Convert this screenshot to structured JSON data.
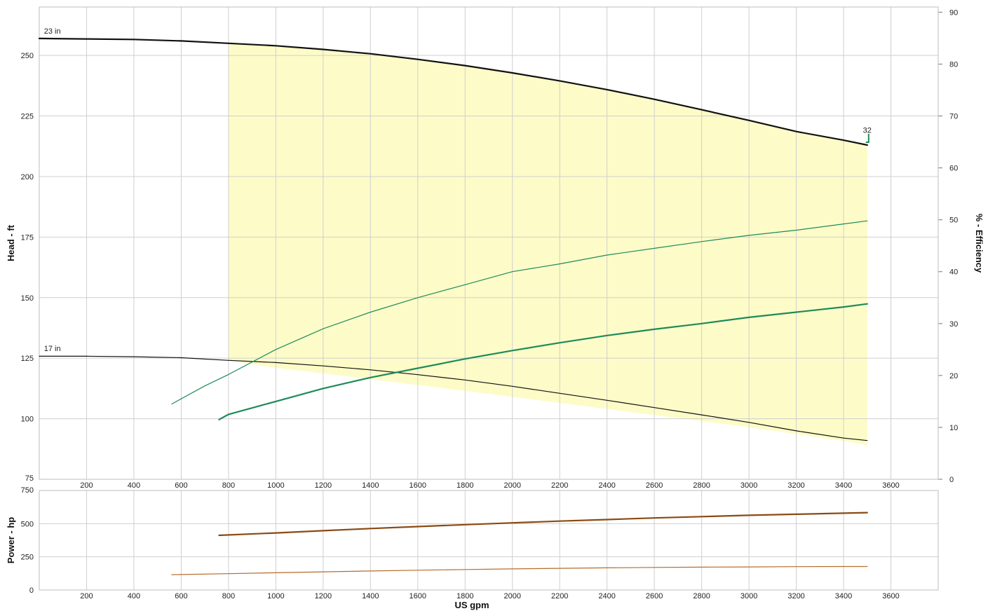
{
  "chart_data": [
    {
      "type": "line",
      "panel": "head-efficiency",
      "xlabel": "",
      "ylabel": "Head - ft",
      "y2label": "% - Efficiency",
      "xlim": [
        0,
        3800
      ],
      "ylim": [
        75,
        270
      ],
      "y2lim": [
        0,
        91
      ],
      "x_ticks": [
        200,
        400,
        600,
        800,
        1000,
        1200,
        1400,
        1600,
        1800,
        2000,
        2200,
        2400,
        2600,
        2800,
        3000,
        3200,
        3400,
        3600
      ],
      "y_ticks": [
        75,
        100,
        125,
        150,
        175,
        200,
        225,
        250
      ],
      "y2_ticks": [
        0,
        10,
        20,
        30,
        40,
        50,
        60,
        70,
        80,
        90
      ],
      "grid": true,
      "operating_region": {
        "color": "#fdfcc8",
        "upper": [
          [
            800,
            255
          ],
          [
            1000,
            254
          ],
          [
            1200,
            252.5
          ],
          [
            1400,
            250.7
          ],
          [
            1600,
            248.4
          ],
          [
            1800,
            245.8
          ],
          [
            2000,
            242.8
          ],
          [
            2200,
            239.5
          ],
          [
            2400,
            235.9
          ],
          [
            2600,
            231.9
          ],
          [
            2800,
            227.6
          ],
          [
            3000,
            223.2
          ],
          [
            3200,
            218.6
          ],
          [
            3400,
            215.0
          ],
          [
            3500,
            213.0
          ]
        ],
        "lower": [
          [
            800,
            124.1
          ],
          [
            1000,
            121.0
          ],
          [
            1400,
            116.3
          ],
          [
            1800,
            111.5
          ],
          [
            2200,
            106.5
          ],
          [
            2600,
            101.5
          ],
          [
            3000,
            96.5
          ],
          [
            3400,
            90.8
          ],
          [
            3500,
            89
          ]
        ]
      },
      "series": [
        {
          "name": "23 in",
          "axis": "left",
          "color": "#111111",
          "width": 2.2,
          "x": [
            0,
            200,
            400,
            600,
            800,
            1000,
            1200,
            1400,
            1600,
            1800,
            2000,
            2200,
            2400,
            2600,
            2800,
            3000,
            3200,
            3400,
            3500
          ],
          "y": [
            257,
            256.8,
            256.6,
            256,
            255,
            254,
            252.5,
            250.7,
            248.4,
            245.8,
            242.8,
            239.5,
            235.9,
            231.9,
            227.6,
            223.2,
            218.6,
            215.0,
            213.0
          ]
        },
        {
          "name": "17 in",
          "axis": "left",
          "color": "#111111",
          "width": 1.2,
          "x": [
            0,
            200,
            400,
            600,
            800,
            1000,
            1200,
            1400,
            1600,
            1800,
            2000,
            2200,
            2400,
            2600,
            2800,
            3000,
            3200,
            3400,
            3500
          ],
          "y": [
            125.8,
            125.8,
            125.6,
            125.2,
            124.1,
            123.2,
            121.8,
            120.2,
            118.2,
            116.0,
            113.4,
            110.5,
            107.6,
            104.6,
            101.6,
            98.5,
            95.0,
            92.0,
            91.0
          ]
        },
        {
          "name": "",
          "axis": "right",
          "color": "#1e8a5a",
          "width": 1.2,
          "x": [
            560,
            700,
            800,
            1000,
            1200,
            1400,
            1600,
            1800,
            2000,
            2200,
            2400,
            2600,
            2800,
            3000,
            3200,
            3400,
            3500
          ],
          "y": [
            14.5,
            18,
            20.2,
            25,
            29,
            32.2,
            35,
            37.5,
            40,
            41.5,
            43.2,
            44.5,
            45.8,
            47,
            48,
            49.2,
            49.8
          ]
        },
        {
          "name": "",
          "axis": "right",
          "color": "#1e8a5a",
          "width": 2.2,
          "x": [
            760,
            800,
            1000,
            1200,
            1400,
            1600,
            1800,
            2000,
            2200,
            2400,
            2600,
            2800,
            3000,
            3200,
            3400,
            3500
          ],
          "y": [
            11.5,
            12.5,
            15,
            17.5,
            19.6,
            21.4,
            23.2,
            24.8,
            26.3,
            27.7,
            28.9,
            30,
            31.2,
            32.2,
            33.2,
            33.8
          ]
        }
      ],
      "annotations": [
        {
          "text": "23 in",
          "x": 20,
          "y": 259
        },
        {
          "text": "17 in",
          "x": 20,
          "y": 128
        },
        {
          "text": "32",
          "x": 3500,
          "y": 218
        }
      ]
    },
    {
      "type": "line",
      "panel": "power",
      "xlabel": "US gpm",
      "ylabel": "Power - hp",
      "xlim": [
        0,
        3800
      ],
      "ylim": [
        0,
        750
      ],
      "x_ticks": [
        200,
        400,
        600,
        800,
        1000,
        1200,
        1400,
        1600,
        1800,
        2000,
        2200,
        2400,
        2600,
        2800,
        3000,
        3200,
        3400,
        3600
      ],
      "y_ticks": [
        0,
        250,
        500,
        750
      ],
      "grid": true,
      "series": [
        {
          "name": "",
          "color": "#8a4a12",
          "width": 2.2,
          "x": [
            760,
            1000,
            1200,
            1400,
            1600,
            1800,
            2000,
            2200,
            2400,
            2600,
            2800,
            3000,
            3200,
            3400,
            3500
          ],
          "y": [
            412,
            430,
            447,
            463,
            478,
            492,
            506,
            519,
            531,
            543,
            553,
            563,
            571,
            579,
            583
          ]
        },
        {
          "name": "",
          "color": "#b76b2a",
          "width": 1.2,
          "x": [
            560,
            800,
            1000,
            1200,
            1400,
            1600,
            1800,
            2000,
            2200,
            2400,
            2600,
            2800,
            3000,
            3200,
            3400,
            3500
          ],
          "y": [
            115,
            123,
            130,
            137,
            143,
            149,
            154,
            159,
            163,
            167,
            170,
            172,
            174,
            176,
            177,
            177
          ]
        }
      ]
    }
  ]
}
